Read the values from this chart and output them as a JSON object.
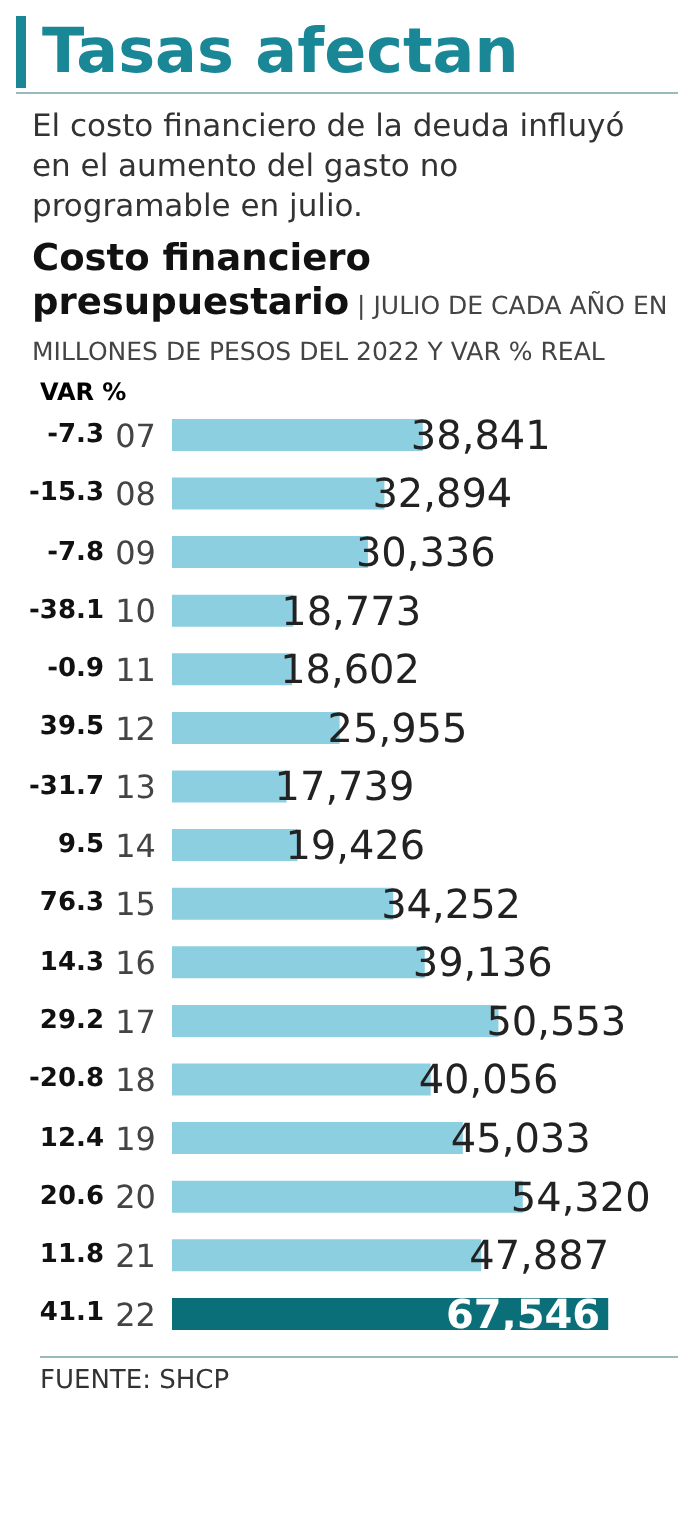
{
  "chart_data": {
    "type": "bar",
    "orientation": "horizontal",
    "title": "Tasas afectan",
    "subtitle": "El costo financiero de la deuda influyó en el aumento del gasto no programable en julio.",
    "xlabel": "Costo financiero presupuestario | JULIO DE CADA AÑO EN MILLONES DE PESOS DEL 2022 Y VAR % REAL",
    "categories": [
      "07",
      "08",
      "09",
      "10",
      "11",
      "12",
      "13",
      "14",
      "15",
      "16",
      "17",
      "18",
      "19",
      "20",
      "21",
      "22"
    ],
    "values": [
      38841,
      32894,
      30336,
      18773,
      18602,
      25955,
      17739,
      19426,
      34252,
      39136,
      50553,
      40056,
      45033,
      54320,
      47887,
      67546
    ],
    "value_labels": [
      "38,841",
      "32,894",
      "30,336",
      "18,773",
      "18,602",
      "25,955",
      "17,739",
      "19,426",
      "34,252",
      "39,136",
      "50,553",
      "40,056",
      "45,033",
      "54,320",
      "47,887",
      "67,546"
    ],
    "colors": [
      "#8ccfe0",
      "#8ccfe0",
      "#8ccfe0",
      "#8ccfe0",
      "#8ccfe0",
      "#8ccfe0",
      "#8ccfe0",
      "#8ccfe0",
      "#8ccfe0",
      "#8ccfe0",
      "#8ccfe0",
      "#8ccfe0",
      "#8ccfe0",
      "#8ccfe0",
      "#8ccfe0",
      "#0b6f79"
    ],
    "legend_title": "VAR %",
    "annotations": [
      "-7.3",
      "-15.3",
      "-7.8",
      "-38.1",
      "-0.9",
      "39.5",
      "-31.7",
      "9.5",
      "76.3",
      "14.3",
      "29.2",
      "-20.8",
      "12.4",
      "20.6",
      "11.8",
      "41.1",
      "FUENTE: SHCP"
    ]
  }
}
